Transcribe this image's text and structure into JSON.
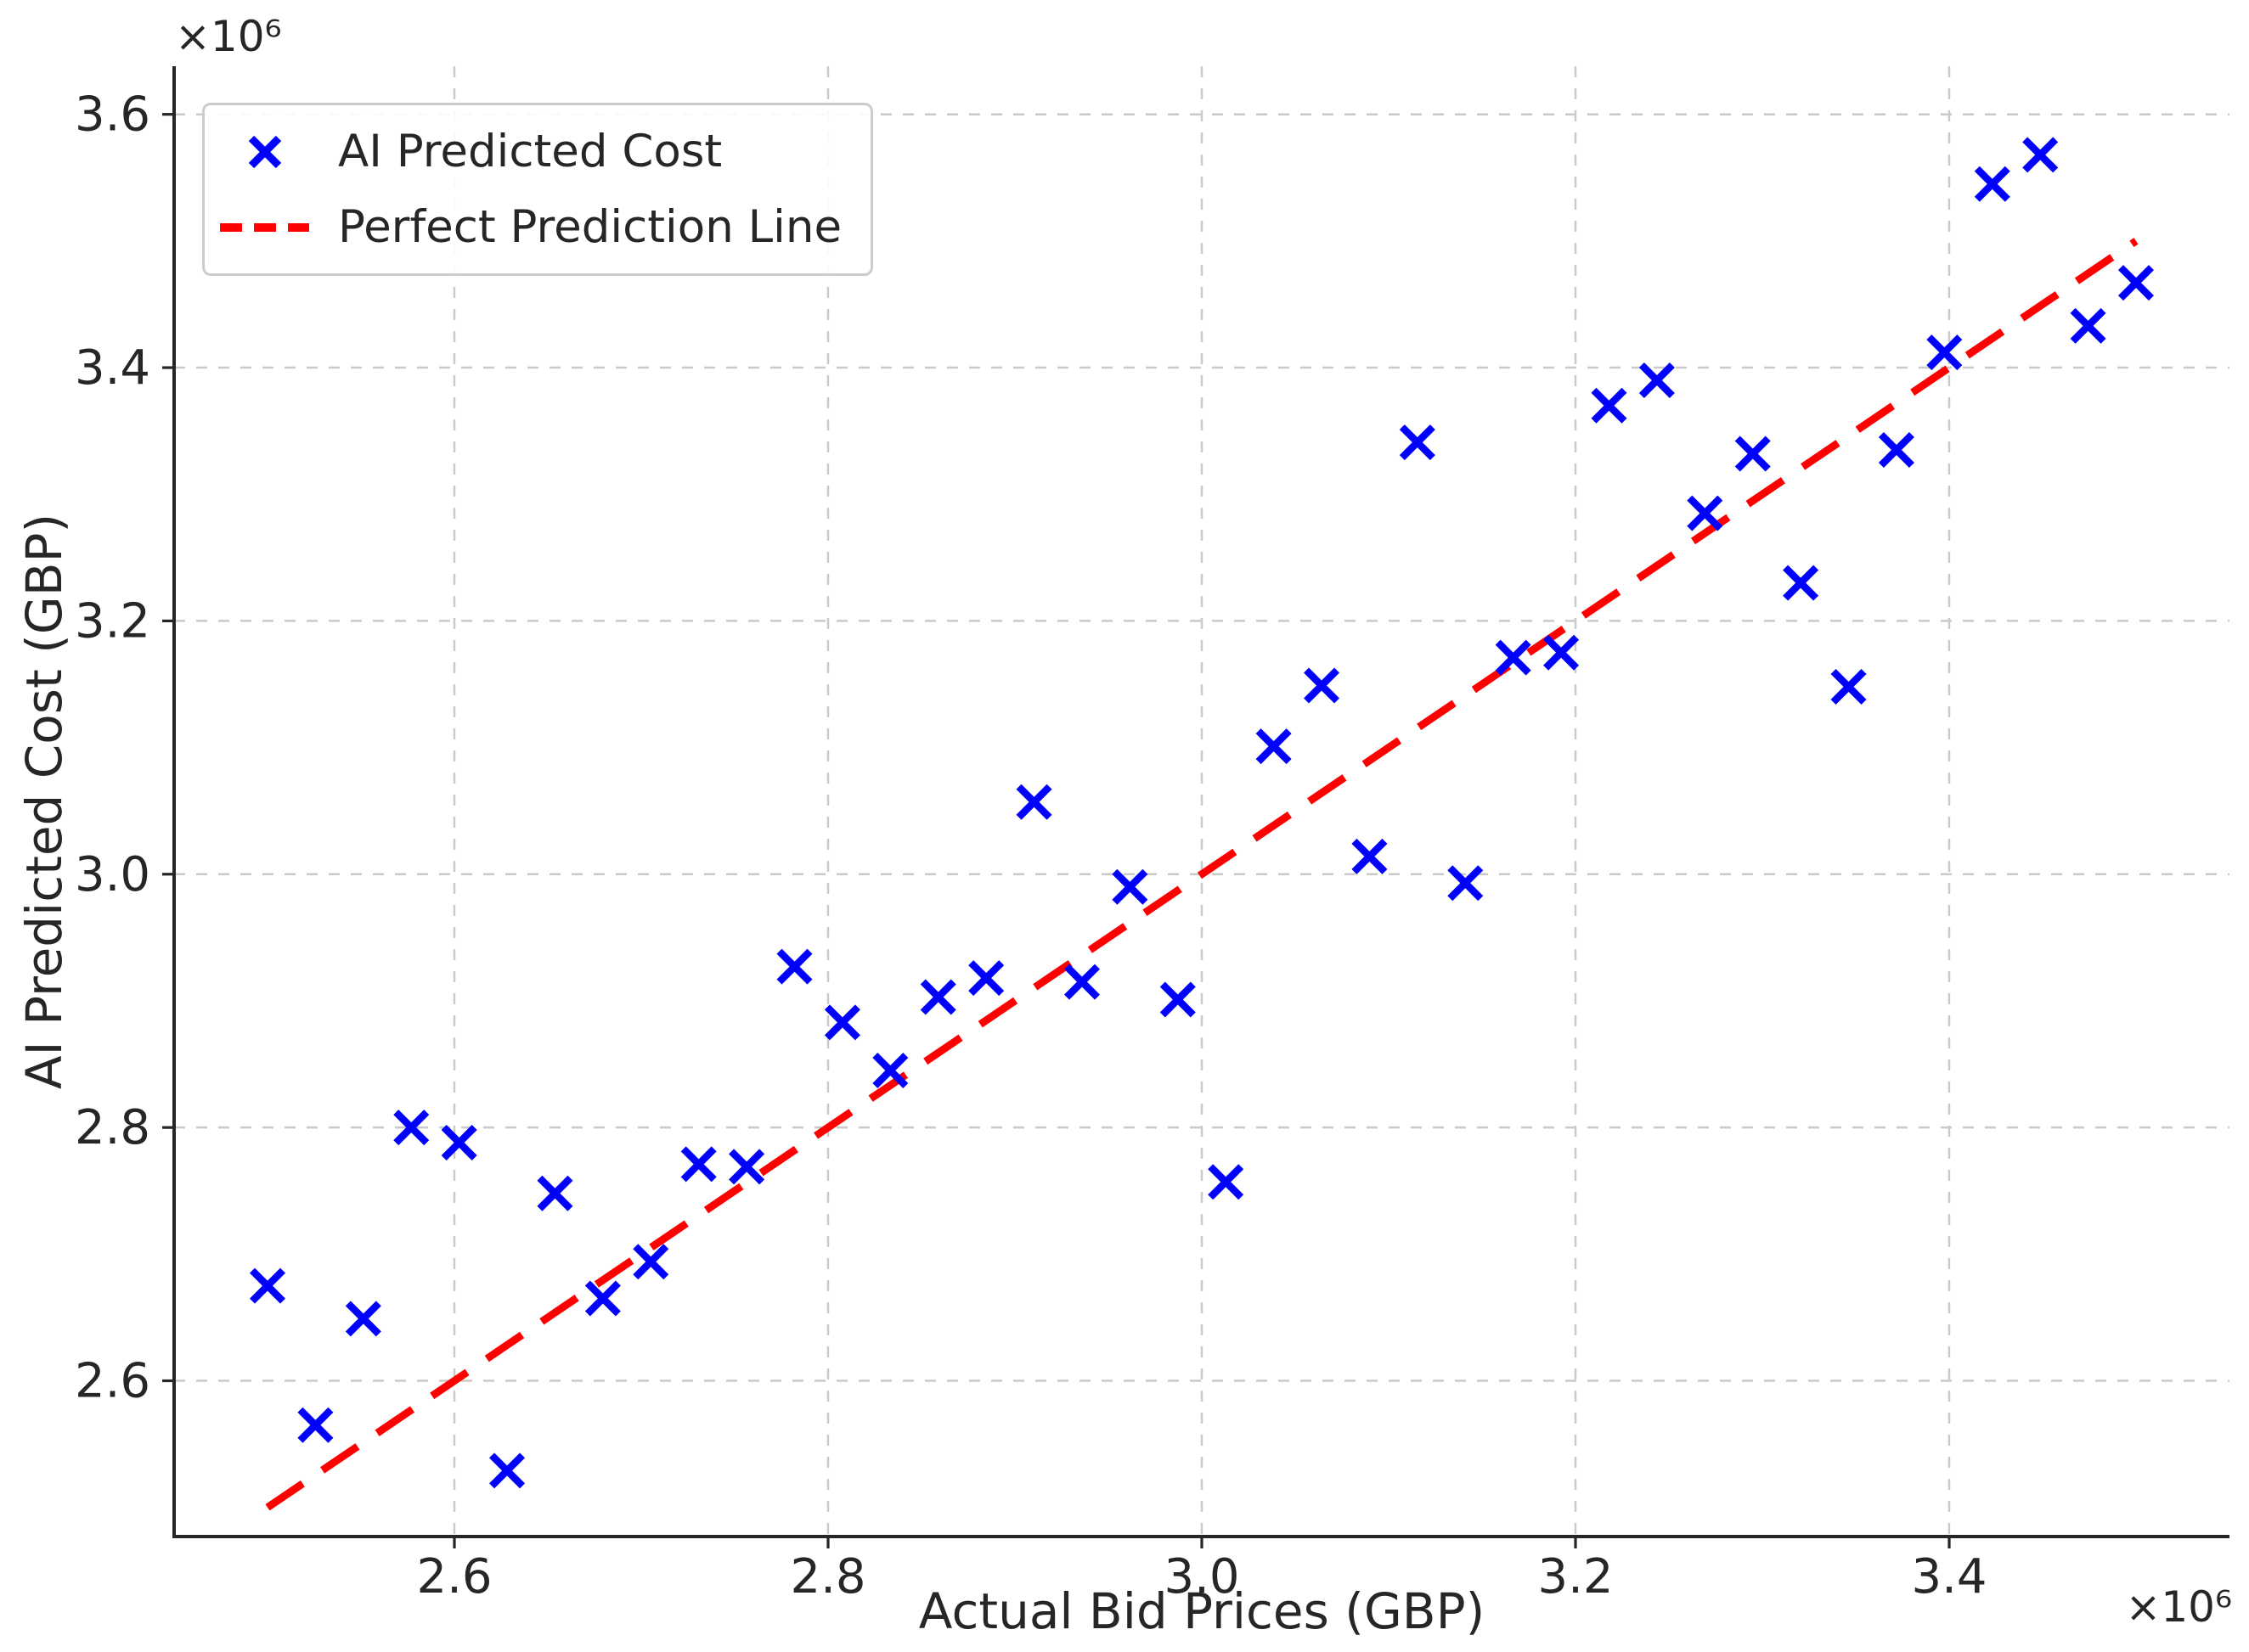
{
  "figure": {
    "background": "#ffffff",
    "text_color": "#262626",
    "spine_color": "#262626"
  },
  "chart_data": {
    "type": "scatter",
    "title": "",
    "xlabel": "Actual Bid Prices (GBP)",
    "ylabel": "AI Predicted Cost (GBP)",
    "x_offset_text": "×10⁶",
    "y_offset_text": "×10⁶",
    "xlim": [
      2450000,
      3550000
    ],
    "ylim": [
      2477000,
      3638000
    ],
    "xticks": [
      2600000,
      2800000,
      3000000,
      3200000,
      3400000
    ],
    "xtick_labels": [
      "2.6",
      "2.8",
      "3.0",
      "3.2",
      "3.4"
    ],
    "yticks": [
      2600000,
      2800000,
      3000000,
      3200000,
      3400000,
      3600000
    ],
    "ytick_labels": [
      "2.6",
      "2.8",
      "3.0",
      "3.2",
      "3.4",
      "3.6"
    ],
    "grid": {
      "visible": true,
      "style": "dashed",
      "color": "#c9c9c9"
    },
    "legend": {
      "position": "upper left"
    },
    "series": [
      {
        "name": "AI Predicted Cost",
        "kind": "scatter",
        "marker": "x",
        "color": "#0000ff",
        "points": [
          [
            2500000,
            2675000
          ],
          [
            2525641,
            2565000
          ],
          [
            2551282,
            2649000
          ],
          [
            2576923,
            2800000
          ],
          [
            2602564,
            2788000
          ],
          [
            2628205,
            2529000
          ],
          [
            2653846,
            2748000
          ],
          [
            2679487,
            2665000
          ],
          [
            2705128,
            2694000
          ],
          [
            2730769,
            2771000
          ],
          [
            2756410,
            2769000
          ],
          [
            2782051,
            2927000
          ],
          [
            2807692,
            2883000
          ],
          [
            2833333,
            2845000
          ],
          [
            2858974,
            2903000
          ],
          [
            2884615,
            2918000
          ],
          [
            2910256,
            3057000
          ],
          [
            2935897,
            2915000
          ],
          [
            2961538,
            2990000
          ],
          [
            2987179,
            2901000
          ],
          [
            3012821,
            2757000
          ],
          [
            3038462,
            3101000
          ],
          [
            3064103,
            3149000
          ],
          [
            3089744,
            3014000
          ],
          [
            3115385,
            3341000
          ],
          [
            3141026,
            2993000
          ],
          [
            3166667,
            3171000
          ],
          [
            3192308,
            3175000
          ],
          [
            3217949,
            3370000
          ],
          [
            3243590,
            3390000
          ],
          [
            3269231,
            3285000
          ],
          [
            3294872,
            3332000
          ],
          [
            3320513,
            3230000
          ],
          [
            3346154,
            3148000
          ],
          [
            3371795,
            3335000
          ],
          [
            3397436,
            3412000
          ],
          [
            3423077,
            3545000
          ],
          [
            3448718,
            3568000
          ],
          [
            3474359,
            3433000
          ],
          [
            3500000,
            3467000
          ]
        ]
      },
      {
        "name": "Perfect Prediction Line",
        "kind": "line",
        "linestyle": "dashed",
        "color": "#ff0000",
        "points": [
          [
            2500000,
            2500000
          ],
          [
            3500000,
            3500000
          ]
        ]
      }
    ]
  }
}
